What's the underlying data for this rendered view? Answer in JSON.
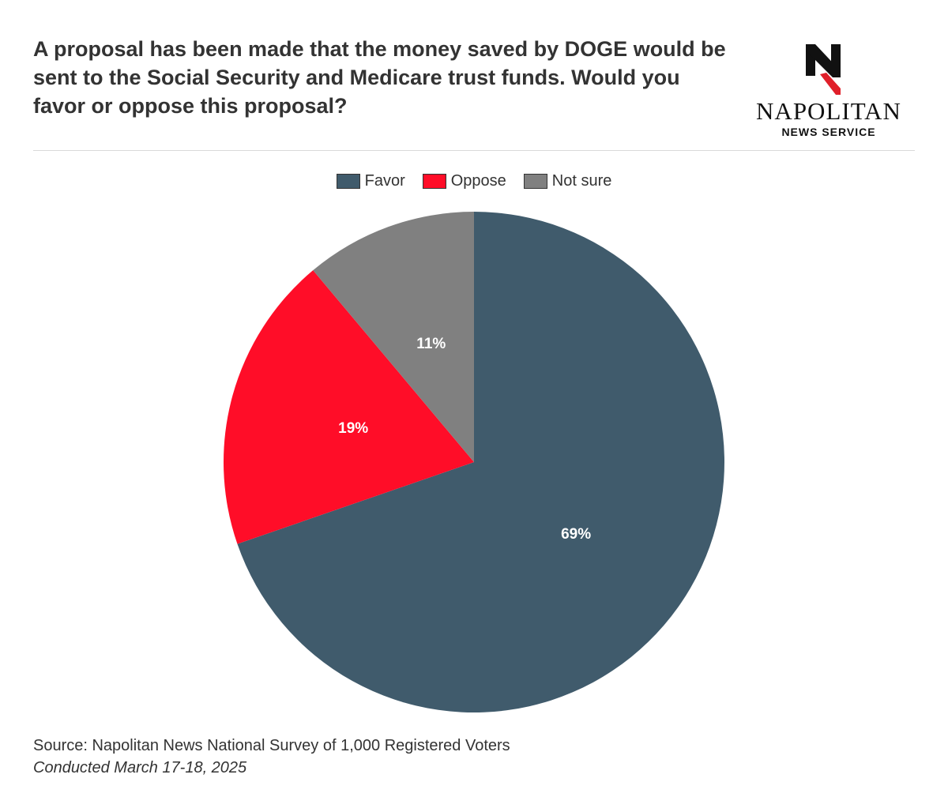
{
  "header": {
    "title": "A proposal has been made that the money saved by DOGE would be sent to the Social Security and Medicare trust funds. Would you favor or oppose this proposal?"
  },
  "logo": {
    "name": "NAPOLITAN",
    "subtitle": "NEWS SERVICE",
    "mark_letter": "N",
    "mark_color": "#111111",
    "accent_color": "#e0202a"
  },
  "footer": {
    "source": "Source: Napolitan News National Survey of 1,000 Registered Voters",
    "date": "Conducted March 17-18, 2025"
  },
  "chart_data": {
    "type": "pie",
    "title": "",
    "legend_position": "top-center",
    "categories": [
      "Favor",
      "Oppose",
      "Not sure"
    ],
    "values": [
      69,
      19,
      11
    ],
    "labels": [
      "69%",
      "19%",
      "11%"
    ],
    "colors": [
      "#405b6c",
      "#ff0d28",
      "#808080"
    ],
    "start": "12 o'clock",
    "direction": "clockwise"
  }
}
